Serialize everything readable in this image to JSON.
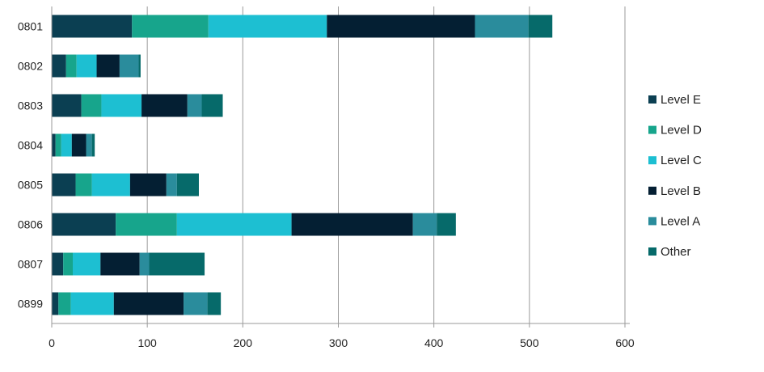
{
  "chart_data": {
    "type": "bar",
    "orientation": "horizontal",
    "stacked": true,
    "title": "",
    "xlabel": "",
    "ylabel": "",
    "xlim": [
      0,
      600
    ],
    "x_ticks": [
      "0",
      "100",
      "200",
      "300",
      "400",
      "500",
      "600"
    ],
    "categories": [
      "0801",
      "0802",
      "0803",
      "0804",
      "0805",
      "0806",
      "0807",
      "0899"
    ],
    "series": [
      {
        "name": "Level E",
        "color": "#0b3f52",
        "values": [
          84,
          15,
          31,
          4,
          25,
          67,
          12,
          7
        ]
      },
      {
        "name": "Level D",
        "color": "#17a58c",
        "values": [
          80,
          11,
          21,
          6,
          17,
          64,
          10,
          13
        ]
      },
      {
        "name": "Level C",
        "color": "#1dbfd2",
        "values": [
          124,
          21,
          42,
          11,
          40,
          120,
          29,
          45
        ]
      },
      {
        "name": "Level B",
        "color": "#041f33",
        "values": [
          155,
          24,
          48,
          15,
          38,
          127,
          41,
          73
        ]
      },
      {
        "name": "Level A",
        "color": "#2a8c9c",
        "values": [
          56,
          20,
          15,
          6,
          11,
          25,
          10,
          25
        ]
      },
      {
        "name": "Other",
        "color": "#066a6a",
        "values": [
          25,
          2,
          22,
          3,
          23,
          20,
          58,
          14
        ]
      }
    ],
    "grid": "vertical",
    "legend_position": "right"
  }
}
